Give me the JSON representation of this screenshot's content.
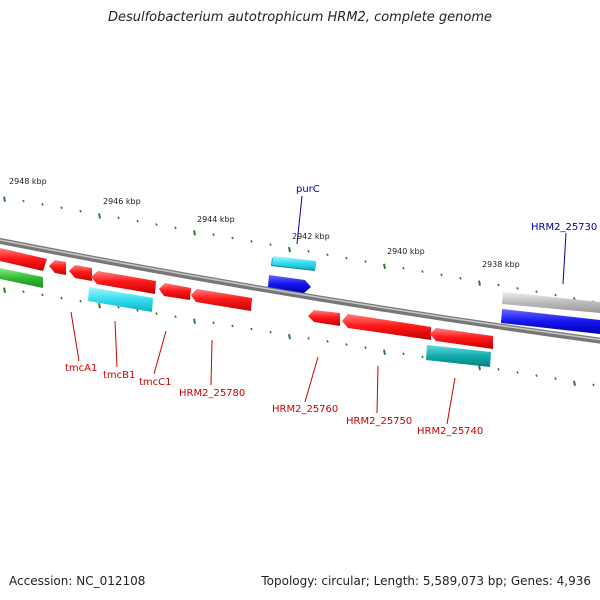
{
  "title": "Desulfobacterium autotrophicum HRM2, complete genome",
  "footer": {
    "accession": "Accession: NC_012108",
    "summary": "Topology: circular; Length: 5,589,073 bp; Genes: 4,936"
  },
  "colors": {
    "backbone": "#888888",
    "tick": "#2e7d2e",
    "red_gene": "#ee1111",
    "cyan_gene": "#22ccdd",
    "teal_gene": "#11aaaa",
    "blue_gene": "#1a1aee",
    "green_gene": "#33bb33",
    "gray_gene": "#bbbbbb",
    "label_red": "#cc0000",
    "label_blue": "#0000aa"
  },
  "kbp_labels": [
    "2948 kbp",
    "2946 kbp",
    "2944 kbp",
    "2942 kbp",
    "2940 kbp",
    "2938 kbp"
  ],
  "gene_labels": {
    "purC": "purC",
    "HRM2_25730": "HRM2_25730",
    "tmcA1": "tmcA1",
    "tmcB1": "tmcB1",
    "tmcC1": "tmcC1",
    "HRM2_25780": "HRM2_25780",
    "HRM2_25760": "HRM2_25760",
    "HRM2_25750": "HRM2_25750",
    "HRM2_25740": "HRM2_25740"
  }
}
